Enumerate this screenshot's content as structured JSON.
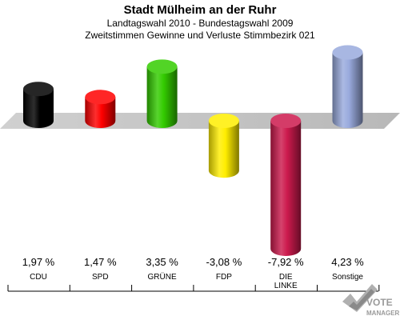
{
  "header": {
    "title": "Stadt Mülheim an der Ruhr",
    "subtitle1": "Landtagswahl 2010 - Bundestagswahl 2009",
    "subtitle2": "Zweitstimmen Gewinne und Verluste Stimmbezirk 021"
  },
  "chart_data": {
    "type": "bar",
    "title": "Stadt Mülheim an der Ruhr",
    "categories": [
      "CDU",
      "SPD",
      "GRÜNE",
      "FDP",
      "DIE LINKE",
      "Sonstige"
    ],
    "values": [
      1.97,
      1.47,
      3.35,
      -3.08,
      -7.92,
      4.23
    ],
    "value_labels": [
      "1,97 %",
      "1,47 %",
      "3,35 %",
      "-3,08 %",
      "-7,92 %",
      "4,23 %"
    ],
    "colors": [
      "#000000",
      "#ff0000",
      "#33cc00",
      "#ffee00",
      "#cc1a4d",
      "#99aadd"
    ],
    "grid": false,
    "legend": "none"
  },
  "logo": {
    "line1": "VOTE",
    "line2": "MANAGER"
  }
}
